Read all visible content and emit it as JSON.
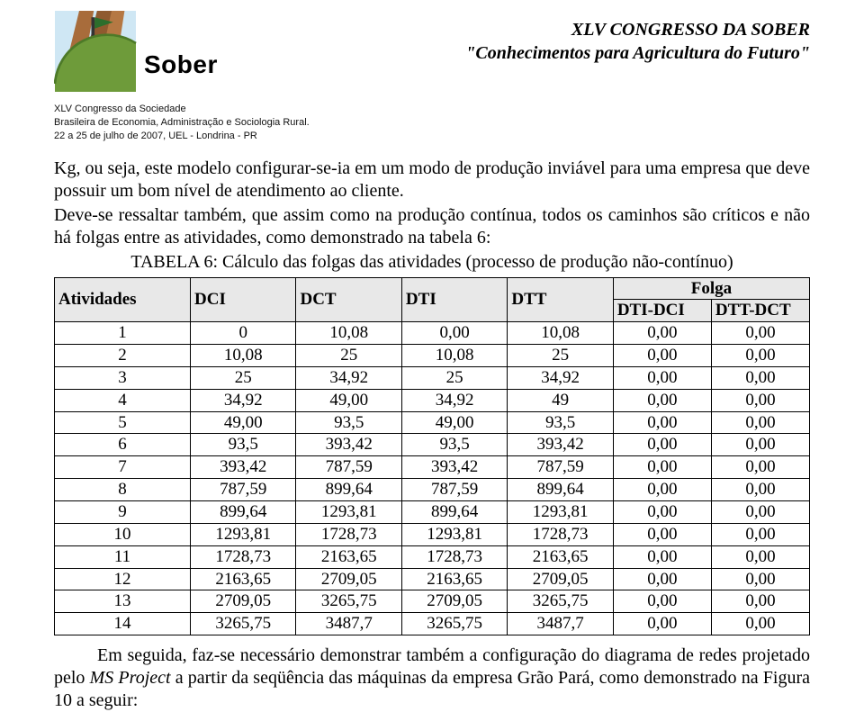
{
  "header": {
    "congress_line1": "XLV CONGRESSO DA SOBER",
    "congress_line2": "\"Conhecimentos para Agricultura do Futuro\"",
    "brand_word": "Sober",
    "org_line1": "XLV Congresso da Sociedade",
    "org_line2": "Brasileira de Economia, Administração e Sociologia Rural.",
    "org_line3": "22 a 25 de julho de 2007, UEL - Londrina - PR"
  },
  "paragraphs": {
    "p1": "Kg, ou seja, este modelo configurar-se-ia em um modo de produção inviável para uma empresa que deve possuir um bom nível de atendimento ao cliente.",
    "p2": "Deve-se ressaltar também, que assim como na produção contínua, todos os caminhos são críticos e não há folgas entre as atividades, como demonstrado na tabela 6:",
    "caption": "TABELA 6: Cálculo das folgas das atividades (processo de produção não-contínuo)",
    "p3_pre": "Em seguida, faz-se necessário demonstrar também a configuração do diagrama de redes projetado pelo ",
    "p3_italic": "MS Project",
    "p3_post": " a partir da seqüência das máquinas da empresa Grão Pará, como demonstrado na Figura 10 a seguir:"
  },
  "table": {
    "headers": {
      "atividades": "Atividades",
      "dci": "DCI",
      "dct": "DCT",
      "dti": "DTI",
      "dtt": "DTT",
      "folga": "Folga",
      "dti_dci": "DTI-DCI",
      "dtt_dct": "DTT-DCT"
    },
    "header_bg": "#e8e8e8",
    "border_color": "#000000",
    "rows": [
      [
        "1",
        "0",
        "10,08",
        "0,00",
        "10,08",
        "0,00",
        "0,00"
      ],
      [
        "2",
        "10,08",
        "25",
        "10,08",
        "25",
        "0,00",
        "0,00"
      ],
      [
        "3",
        "25",
        "34,92",
        "25",
        "34,92",
        "0,00",
        "0,00"
      ],
      [
        "4",
        "34,92",
        "49,00",
        "34,92",
        "49",
        "0,00",
        "0,00"
      ],
      [
        "5",
        "49,00",
        "93,5",
        "49,00",
        "93,5",
        "0,00",
        "0,00"
      ],
      [
        "6",
        "93,5",
        "393,42",
        "93,5",
        "393,42",
        "0,00",
        "0,00"
      ],
      [
        "7",
        "393,42",
        "787,59",
        "393,42",
        "787,59",
        "0,00",
        "0,00"
      ],
      [
        "8",
        "787,59",
        "899,64",
        "787,59",
        "899,64",
        "0,00",
        "0,00"
      ],
      [
        "9",
        "899,64",
        "1293,81",
        "899,64",
        "1293,81",
        "0,00",
        "0,00"
      ],
      [
        "10",
        "1293,81",
        "1728,73",
        "1293,81",
        "1728,73",
        "0,00",
        "0,00"
      ],
      [
        "11",
        "1728,73",
        "2163,65",
        "1728,73",
        "2163,65",
        "0,00",
        "0,00"
      ],
      [
        "12",
        "2163,65",
        "2709,05",
        "2163,65",
        "2709,05",
        "0,00",
        "0,00"
      ],
      [
        "13",
        "2709,05",
        "3265,75",
        "2709,05",
        "3265,75",
        "0,00",
        "0,00"
      ],
      [
        "14",
        "3265,75",
        "3487,7",
        "3265,75",
        "3487,7",
        "0,00",
        "0,00"
      ]
    ]
  },
  "logo_colors": {
    "sky": "#4aa7d6",
    "building": "#a86c3b",
    "ground": "#6e9b3a",
    "flag": "#2c6e2c"
  }
}
